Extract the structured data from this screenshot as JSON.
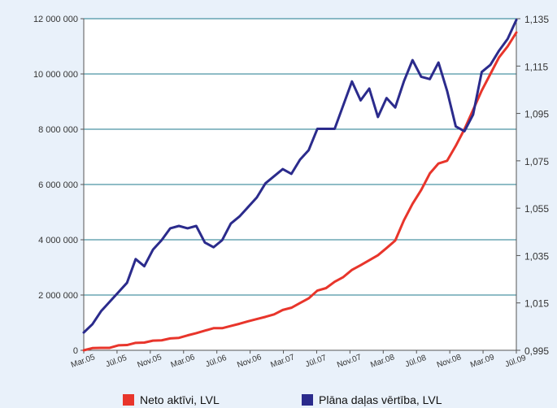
{
  "chart_data": {
    "type": "line",
    "x_labels": [
      "Mar.05",
      "Jūl.05",
      "Nov.05",
      "Mar.06",
      "Jūl.06",
      "Nov.06",
      "Mar.07",
      "Jūl.07",
      "Nov.07",
      "Mar.08",
      "Jūl.08",
      "Nov.08",
      "Mar.09",
      "Jūl.09"
    ],
    "left_axis": {
      "ticks": [
        "0",
        "2 000 000",
        "4 000 000",
        "6 000 000",
        "8 000 000",
        "10 000 000",
        "12 000 000"
      ],
      "ylim": [
        0,
        12000000
      ]
    },
    "right_axis": {
      "ticks": [
        "0,995",
        "1,015",
        "1,035",
        "1,055",
        "1,075",
        "1,095",
        "1,115",
        "1,135"
      ],
      "ylim": [
        0.995,
        1.135
      ]
    },
    "grid": true,
    "legend_position": "bottom",
    "series": [
      {
        "name": "Neto aktīvi, LVL",
        "axis": "left",
        "color": "#e8352b",
        "values": [
          0,
          80000,
          90000,
          90000,
          180000,
          190000,
          270000,
          280000,
          350000,
          360000,
          430000,
          450000,
          540000,
          620000,
          710000,
          800000,
          800000,
          880000,
          960000,
          1050000,
          1130000,
          1210000,
          1300000,
          1460000,
          1540000,
          1710000,
          1880000,
          2160000,
          2250000,
          2480000,
          2650000,
          2910000,
          3080000,
          3260000,
          3440000,
          3700000,
          3970000,
          4700000,
          5300000,
          5800000,
          6400000,
          6760000,
          6860000,
          7400000,
          8000000,
          8700000,
          9400000,
          10000000,
          10600000,
          11000000,
          11500000
        ]
      },
      {
        "name": "Plāna daļas vērtība, LVL",
        "axis": "right",
        "color": "#2b2b8c",
        "values": [
          1.0025,
          1.006,
          1.0115,
          1.0155,
          1.0195,
          1.0235,
          1.0335,
          1.0305,
          1.0375,
          1.0415,
          1.0465,
          1.0475,
          1.0465,
          1.0475,
          1.0405,
          1.0385,
          1.0415,
          1.0485,
          1.0515,
          1.0555,
          1.0595,
          1.0655,
          1.0685,
          1.0715,
          1.0695,
          1.0755,
          1.0795,
          1.0885,
          1.0885,
          1.0885,
          1.0985,
          1.1085,
          1.1005,
          1.1055,
          1.0935,
          1.1015,
          1.0975,
          1.1085,
          1.1175,
          1.1105,
          1.1095,
          1.1165,
          1.1045,
          1.0895,
          1.0875,
          1.0945,
          1.1125,
          1.1155,
          1.1215,
          1.1265,
          1.1345
        ]
      }
    ]
  }
}
